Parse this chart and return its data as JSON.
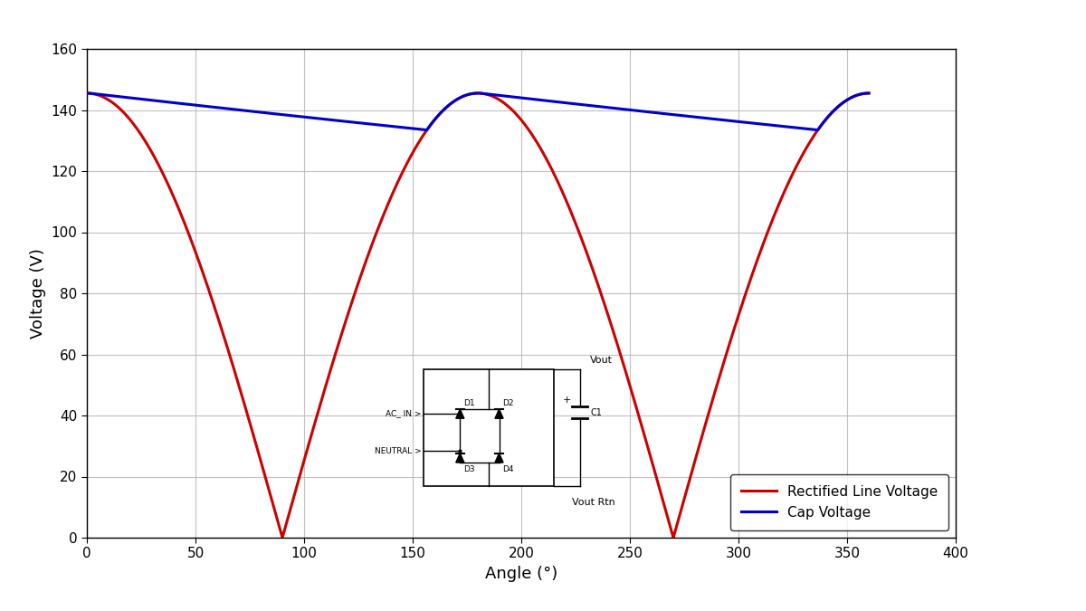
{
  "title": "",
  "xlabel": "Angle (°)",
  "ylabel": "Voltage (V)",
  "xlim": [
    0,
    400
  ],
  "ylim": [
    0,
    160
  ],
  "xticks": [
    0,
    50,
    100,
    150,
    200,
    250,
    300,
    350,
    400
  ],
  "yticks": [
    0,
    20,
    40,
    60,
    80,
    100,
    120,
    140,
    160
  ],
  "red_label": "Rectified Line Voltage",
  "blue_label": "Cap Voltage",
  "red_color": "#cc0000",
  "blue_color": "#0000cc",
  "peak_voltage": 145.5,
  "tau_degrees": 1800.0,
  "background_color": "#ffffff",
  "grid_color": "#bbbbbb",
  "fig_width": 12.0,
  "fig_height": 6.75,
  "circuit_x0": 155,
  "circuit_y0": 17,
  "circuit_bw": 60,
  "circuit_bh": 38
}
